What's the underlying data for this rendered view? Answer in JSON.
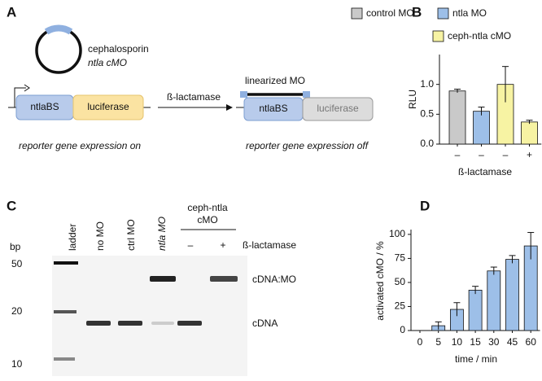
{
  "panel_labels": [
    "A",
    "B",
    "C",
    "D"
  ],
  "diagram": {
    "plasmid_label": [
      "cephalosporin",
      "ntla cMO"
    ],
    "left_construct": [
      "ntlaBS",
      "luciferase"
    ],
    "enzyme": "ß-lactamase",
    "linearized": "linearized MO",
    "right_construct": [
      "ntlaBS",
      "luciferase"
    ],
    "caption_on": "reporter gene expression on",
    "caption_off": "reporter gene expression off"
  },
  "gel": {
    "size_unit": "bp",
    "ladder_sizes": [
      50,
      20,
      10
    ],
    "lanes": [
      "ladder",
      "no MO",
      "ctrl MO",
      "ntla MO"
    ],
    "group": [
      "ceph-ntla",
      "cMO"
    ],
    "treatment": [
      "–",
      "+"
    ],
    "treatment_label": "ß-lactamase",
    "bands": [
      "cDNA:MO",
      "cDNA"
    ]
  },
  "chart_data": [
    {
      "type": "bar",
      "y_label": "RLU",
      "x_label": "ß-lactamase",
      "categories": [
        "–",
        "–",
        "–",
        "+"
      ],
      "values": [
        0.89,
        0.55,
        1.0,
        0.37
      ],
      "errors": [
        0.03,
        0.07,
        0.3,
        0.03
      ],
      "colors": [
        "#c9c9c9",
        "#9dbfe8",
        "#f7f3a3",
        "#f7f3a3"
      ],
      "legend": [
        {
          "name": "control MO",
          "color": "#c9c9c9"
        },
        {
          "name": "ntla MO",
          "color": "#9dbfe8"
        },
        {
          "name": "ceph-ntla cMO",
          "color": "#f7f3a3"
        }
      ],
      "ylim": [
        0,
        1.5
      ],
      "yticks": [
        {
          "value": 0,
          "label": "0.0"
        },
        {
          "value": 0.5,
          "label": "0.5"
        },
        {
          "value": 1,
          "label": "1.0"
        }
      ]
    },
    {
      "type": "bar",
      "y_label": "activated cMO / %",
      "x_label": "time / min",
      "categories": [
        "0",
        "5",
        "10",
        "15",
        "30",
        "45",
        "60"
      ],
      "values": [
        0,
        5,
        22,
        42,
        62,
        74,
        88
      ],
      "errors": [
        0,
        4,
        7,
        4,
        4,
        4,
        14
      ],
      "colors": [
        "#9dbfe8",
        "#9dbfe8",
        "#9dbfe8",
        "#9dbfe8",
        "#9dbfe8",
        "#9dbfe8",
        "#9dbfe8"
      ],
      "ylim": [
        0,
        105
      ],
      "yticks": [
        0,
        25,
        50,
        75,
        100
      ]
    }
  ]
}
